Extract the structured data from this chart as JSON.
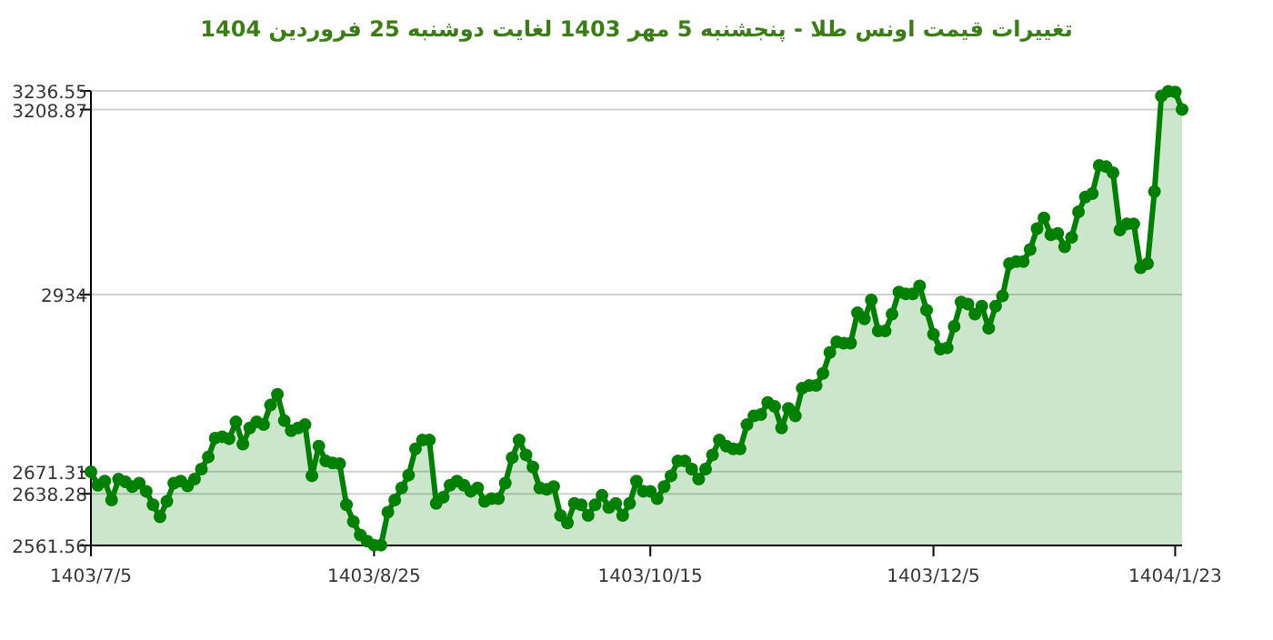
{
  "chart_data": {
    "type": "area",
    "title": "تغییرات قیمت اونس طلا - پنجشنبه  5 مهر 1403 لغایت  دوشنبه  25 فروردین 1404",
    "color": "#008000",
    "marker": "circle",
    "grid": "y",
    "ylim": [
      2561.56,
      3236.55
    ],
    "categories": [
      "1403/7/5",
      null,
      null,
      null,
      null,
      null,
      null,
      null,
      null,
      null,
      null,
      null,
      null,
      null,
      null,
      null,
      null,
      null,
      null,
      null,
      null,
      null,
      null,
      null,
      null,
      null,
      null,
      null,
      null,
      null,
      null,
      null,
      null,
      null,
      null,
      null,
      null,
      null,
      null,
      null,
      null,
      "1403/8/25",
      null,
      null,
      null,
      null,
      null,
      null,
      null,
      null,
      null,
      null,
      null,
      null,
      null,
      null,
      null,
      null,
      null,
      null,
      null,
      null,
      null,
      null,
      null,
      null,
      null,
      null,
      null,
      null,
      null,
      null,
      null,
      null,
      null,
      null,
      null,
      null,
      null,
      null,
      null,
      "1403/10/15",
      null,
      null,
      null,
      null,
      null,
      null,
      null,
      null,
      null,
      null,
      null,
      null,
      null,
      null,
      null,
      null,
      null,
      null,
      null,
      null,
      null,
      null,
      null,
      null,
      null,
      null,
      null,
      null,
      null,
      null,
      null,
      null,
      null,
      null,
      null,
      null,
      null,
      null,
      null,
      null,
      "1403/12/5",
      null,
      null,
      null,
      null,
      null,
      null,
      null,
      null,
      null,
      null,
      null,
      null,
      null,
      null,
      null,
      null,
      null,
      null,
      null,
      null,
      null,
      null,
      null,
      null,
      null,
      null,
      null,
      null,
      null,
      null,
      null,
      null,
      null,
      null,
      "1404/1/23",
      null
    ],
    "yticks": [
      2561.56,
      2638.28,
      2671.31,
      2934,
      3208.87,
      3236.55
    ],
    "values": [
      2671,
      2651,
      2657,
      2629,
      2660,
      2656,
      2649,
      2654,
      2642,
      2622,
      2604,
      2627,
      2654,
      2657,
      2650,
      2660,
      2675,
      2693,
      2721,
      2723,
      2720,
      2745,
      2712,
      2736,
      2745,
      2741,
      2770,
      2786,
      2747,
      2732,
      2736,
      2741,
      2665,
      2709,
      2687,
      2684,
      2683,
      2622,
      2597,
      2577,
      2568,
      2562,
      2562,
      2611,
      2629,
      2647,
      2666,
      2705,
      2718,
      2718,
      2624,
      2633,
      2651,
      2657,
      2651,
      2642,
      2647,
      2627,
      2631,
      2631,
      2654,
      2692,
      2718,
      2696,
      2678,
      2647,
      2645,
      2649,
      2606,
      2595,
      2624,
      2622,
      2606,
      2622,
      2636,
      2618,
      2624,
      2606,
      2624,
      2657,
      2642,
      2642,
      2631,
      2649,
      2665,
      2687,
      2687,
      2675,
      2660,
      2675,
      2696,
      2718,
      2709,
      2705,
      2705,
      2741,
      2754,
      2756,
      2774,
      2768,
      2736,
      2765,
      2754,
      2795,
      2799,
      2799,
      2817,
      2848,
      2864,
      2862,
      2862,
      2907,
      2898,
      2926,
      2880,
      2880,
      2905,
      2938,
      2935,
      2935,
      2947,
      2911,
      2875,
      2853,
      2855,
      2887,
      2923,
      2920,
      2905,
      2917,
      2884,
      2917,
      2932,
      2980,
      2983,
      2983,
      3001,
      3032,
      3048,
      3023,
      3025,
      3005,
      3019,
      3057,
      3079,
      3084,
      3126,
      3124,
      3115,
      3030,
      3039,
      3039,
      2974,
      2980,
      3087,
      3229,
      3236,
      3235,
      3209
    ]
  }
}
